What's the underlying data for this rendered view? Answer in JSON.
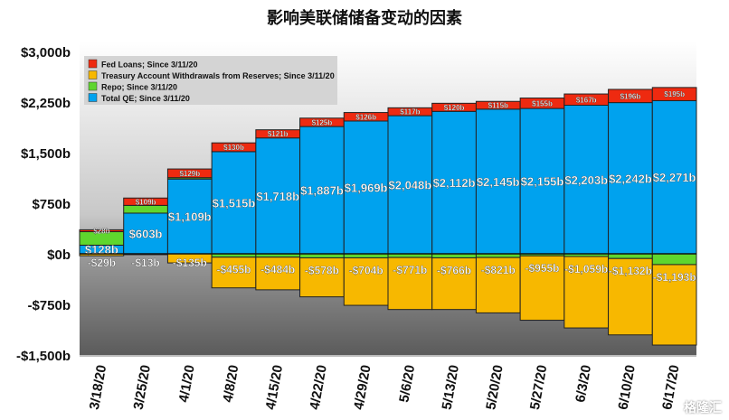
{
  "chart_data": {
    "type": "bar",
    "stacked": true,
    "title": "影响美联储储备变动的因素",
    "categories": [
      "3/18/20",
      "3/25/20",
      "4/1/20",
      "4/8/20",
      "4/15/20",
      "4/22/20",
      "4/29/20",
      "5/6/20",
      "5/13/20",
      "5/20/20",
      "5/27/20",
      "6/3/20",
      "6/10/20",
      "6/17/20"
    ],
    "ylim": [
      -1500,
      3000
    ],
    "yticks": [
      {
        "value": 3000,
        "label": "$3,000b"
      },
      {
        "value": 2250,
        "label": "$2,250b"
      },
      {
        "value": 1500,
        "label": "$1,500b"
      },
      {
        "value": 750,
        "label": "$750b"
      },
      {
        "value": 0,
        "label": "$0b"
      },
      {
        "value": -750,
        "label": "-$750b"
      },
      {
        "value": -1500,
        "label": "-$1,500b"
      }
    ],
    "legend_position": "top-left",
    "series": [
      {
        "name": "Fed Loans; Since 3/11/20",
        "color": "#ee2a10",
        "values": [
          28,
          109,
          129,
          130,
          121,
          125,
          126,
          117,
          120,
          115,
          155,
          167,
          196,
          195
        ],
        "labels": [
          "$28b",
          "$109b",
          "$129b",
          "$130b",
          "$121b",
          "$125b",
          "$126b",
          "$117b",
          "$120b",
          "$115b",
          "$155b",
          "$167b",
          "$196b",
          "$195b"
        ]
      },
      {
        "name": "Treasury Account Withdrawals from Reserves; Since 3/11/20",
        "color": "#f7b800",
        "values": [
          -29,
          -13,
          -135,
          -455,
          -484,
          -578,
          -704,
          -771,
          -766,
          -821,
          -955,
          -1059,
          -1132,
          -1193
        ],
        "labels": [
          "-$29b",
          "-$13b",
          "-$135b",
          "-$455b",
          "-$484b",
          "-$578b",
          "-$704b",
          "-$771b",
          "-$766b",
          "-$821b",
          "-$955b",
          "-$1,059b",
          "-$1,132b",
          "-$1,193b"
        ]
      },
      {
        "name": "Repo; Since 3/11/20",
        "color": "#5fd62e",
        "values": [
          200,
          115,
          20,
          -50,
          -50,
          -60,
          -60,
          -55,
          -60,
          -55,
          -30,
          -40,
          -70,
          -160
        ]
      },
      {
        "name": "Total QE; Since 3/11/20",
        "color": "#00a2ee",
        "values": [
          128,
          603,
          1109,
          1515,
          1718,
          1887,
          1969,
          2048,
          2112,
          2145,
          2155,
          2203,
          2242,
          2271
        ],
        "labels": [
          "$128b",
          "$603b",
          "$1,109b",
          "$1,515b",
          "$1,718b",
          "$1,887b",
          "$1,969b",
          "$2,048b",
          "$2,112b",
          "$2,145b",
          "$2,155b",
          "$2,203b",
          "$2,242b",
          "$2,271b"
        ]
      }
    ]
  },
  "watermark": "格隆汇"
}
